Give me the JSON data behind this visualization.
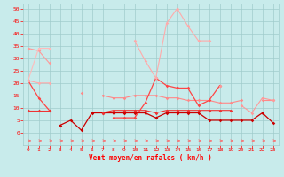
{
  "x": [
    0,
    1,
    2,
    3,
    4,
    5,
    6,
    7,
    8,
    9,
    10,
    11,
    12,
    13,
    14,
    15,
    16,
    17,
    18,
    19,
    20,
    21,
    22,
    23
  ],
  "series": [
    {
      "color": "#FF9999",
      "linewidth": 0.8,
      "marker": "D",
      "markersize": 1.8,
      "y": [
        34,
        33,
        28,
        null,
        null,
        null,
        null,
        null,
        null,
        null,
        null,
        null,
        null,
        null,
        null,
        null,
        null,
        null,
        null,
        null,
        null,
        null,
        null,
        null
      ]
    },
    {
      "color": "#FF8888",
      "linewidth": 0.8,
      "marker": "D",
      "markersize": 1.8,
      "y": [
        null,
        null,
        null,
        null,
        null,
        16,
        null,
        15,
        14,
        14,
        15,
        15,
        15,
        14,
        14,
        13,
        13,
        13,
        12,
        12,
        13,
        null,
        13,
        13
      ]
    },
    {
      "color": "#FF4444",
      "linewidth": 0.9,
      "marker": "D",
      "markersize": 1.8,
      "y": [
        21,
        14,
        9,
        null,
        null,
        null,
        null,
        null,
        6,
        6,
        6,
        12,
        22,
        19,
        18,
        18,
        11,
        13,
        19,
        null,
        null,
        null,
        null,
        null
      ]
    },
    {
      "color": "#FFAAAA",
      "linewidth": 0.8,
      "marker": "D",
      "markersize": 1.8,
      "y": [
        null,
        null,
        null,
        null,
        null,
        null,
        null,
        null,
        null,
        null,
        37,
        29,
        22,
        44,
        50,
        43,
        37,
        37,
        null,
        null,
        null,
        null,
        null,
        null
      ]
    },
    {
      "color": "#FF9999",
      "linewidth": 0.8,
      "marker": "D",
      "markersize": 1.8,
      "y": [
        null,
        null,
        null,
        null,
        null,
        null,
        null,
        null,
        null,
        null,
        null,
        null,
        null,
        null,
        null,
        null,
        null,
        null,
        19,
        null,
        11,
        8,
        14,
        13
      ]
    },
    {
      "color": "#CC0000",
      "linewidth": 0.9,
      "marker": "D",
      "markersize": 1.8,
      "y": [
        null,
        null,
        null,
        3,
        5,
        1,
        8,
        8,
        8,
        8,
        8,
        8,
        6,
        8,
        8,
        8,
        8,
        5,
        5,
        5,
        5,
        5,
        8,
        4
      ]
    },
    {
      "color": "#EE3333",
      "linewidth": 0.8,
      "marker": "D",
      "markersize": 1.8,
      "y": [
        9,
        9,
        9,
        null,
        null,
        null,
        null,
        8,
        9,
        9,
        9,
        9,
        8,
        9,
        9,
        9,
        9,
        9,
        9,
        9,
        null,
        null,
        null,
        null
      ]
    },
    {
      "color": "#FFBBBB",
      "linewidth": 0.8,
      "marker": "D",
      "markersize": 1.8,
      "y": [
        21,
        34,
        34,
        null,
        null,
        null,
        null,
        null,
        null,
        null,
        null,
        null,
        null,
        null,
        null,
        null,
        null,
        null,
        null,
        null,
        null,
        null,
        null,
        null
      ]
    },
    {
      "color": "#FFAAAA",
      "linewidth": 0.8,
      "marker": "D",
      "markersize": 1.8,
      "y": [
        21,
        20,
        20,
        null,
        null,
        null,
        null,
        null,
        null,
        null,
        null,
        null,
        null,
        null,
        null,
        null,
        null,
        null,
        null,
        null,
        null,
        null,
        null,
        null
      ]
    }
  ],
  "xlabel": "Vent moyen/en rafales ( km/h )",
  "ylim": [
    -5,
    52
  ],
  "xlim": [
    -0.5,
    23.5
  ],
  "yticks": [
    0,
    5,
    10,
    15,
    20,
    25,
    30,
    35,
    40,
    45,
    50
  ],
  "xticks": [
    0,
    1,
    2,
    3,
    4,
    5,
    6,
    7,
    8,
    9,
    10,
    11,
    12,
    13,
    14,
    15,
    16,
    17,
    18,
    19,
    20,
    21,
    22,
    23
  ],
  "background_color": "#C8EBEB",
  "grid_color": "#A0CCCC",
  "tick_color": "#FF0000",
  "label_color": "#FF0000",
  "arrow_color": "#FF6666",
  "figsize": [
    3.2,
    2.0
  ],
  "dpi": 100
}
